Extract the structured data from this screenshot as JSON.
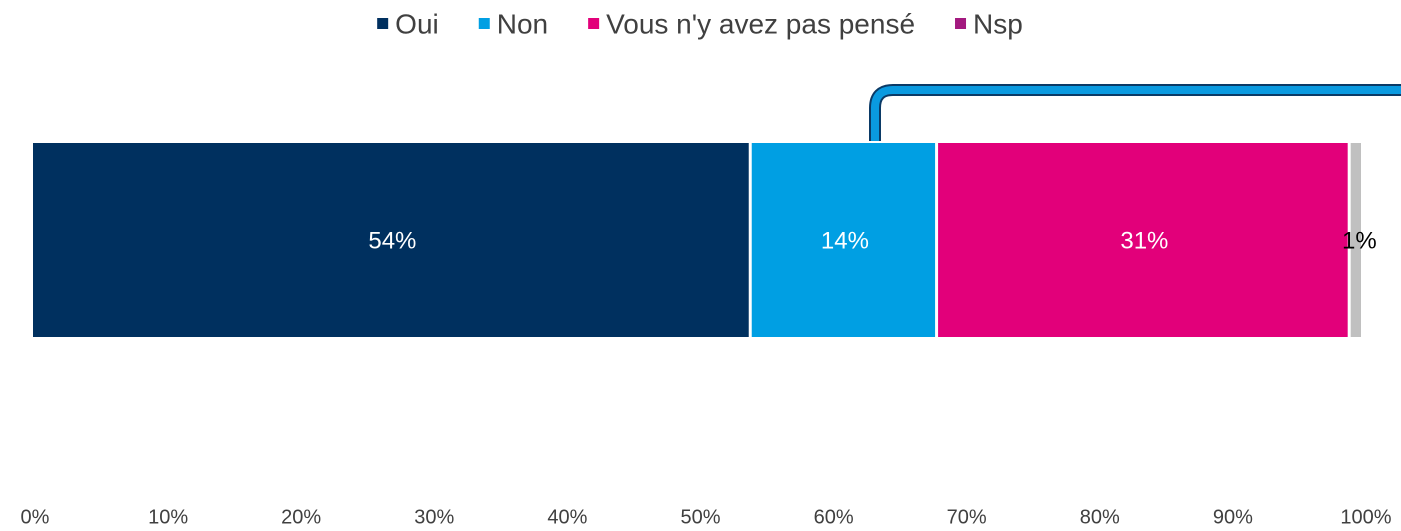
{
  "chart_data": {
    "type": "stacked_bar_horizontal",
    "categories": [
      null
    ],
    "series": [
      {
        "name": "Oui",
        "color": "#00305f",
        "legend_color": "#00305f",
        "label_color": "#ffffff",
        "values": [
          54
        ],
        "value_labels": [
          "54%"
        ]
      },
      {
        "name": "Non",
        "color": "#009fe3",
        "legend_color": "#009fe3",
        "label_color": "#ffffff",
        "values": [
          14
        ],
        "value_labels": [
          "14%"
        ]
      },
      {
        "name": "Vous n'y avez pas pensé",
        "color": "#e2007a",
        "legend_color": "#e2007a",
        "label_color": "#ffffff",
        "values": [
          31
        ],
        "value_labels": [
          "31%"
        ]
      },
      {
        "name": "Nsp",
        "color": "#c0c0c0",
        "legend_color": "#a3197f",
        "label_color": "#000000",
        "values": [
          1
        ],
        "value_labels": [
          "1%"
        ]
      }
    ],
    "xlim": [
      0,
      100
    ],
    "xticks": [
      {
        "value": 0,
        "label": "0%"
      },
      {
        "value": 10,
        "label": "10%"
      },
      {
        "value": 20,
        "label": "20%"
      },
      {
        "value": 30,
        "label": "30%"
      },
      {
        "value": 40,
        "label": "40%"
      },
      {
        "value": 50,
        "label": "50%"
      },
      {
        "value": 60,
        "label": "60%"
      },
      {
        "value": 70,
        "label": "70%"
      },
      {
        "value": 80,
        "label": "80%"
      },
      {
        "value": 90,
        "label": "90%"
      },
      {
        "value": 100,
        "label": "100%"
      }
    ],
    "legend": "top",
    "grid": false
  }
}
